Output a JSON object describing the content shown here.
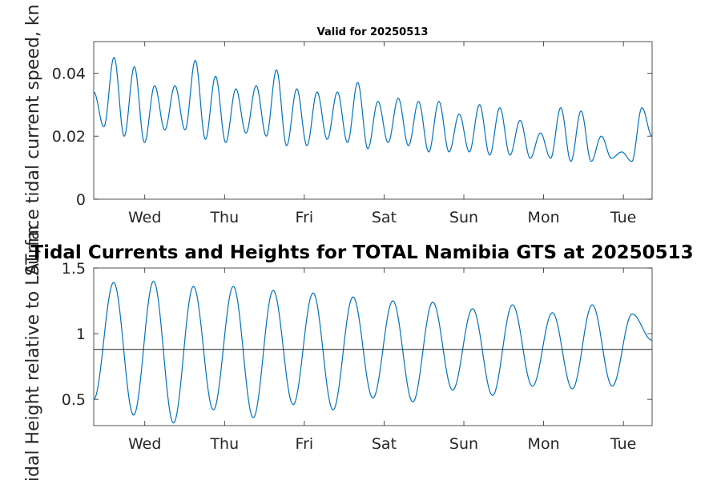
{
  "chart_data": [
    {
      "type": "line",
      "title": "Valid for 20250513",
      "ylabel": "Surface tidal current speed, kn",
      "xlabel": "",
      "x_tick_labels": [
        "Wed",
        "Thu",
        "Fri",
        "Sat",
        "Sun",
        "Mon",
        "Tue"
      ],
      "x_range_days": [
        0,
        7
      ],
      "y_ticks": [
        "0",
        "0.02",
        "0.04"
      ],
      "ylim": [
        0,
        0.05
      ],
      "color": "#0072BD",
      "series": [
        {
          "values": [
            0.034,
            0.023,
            0.045,
            0.02,
            0.042,
            0.018,
            0.036,
            0.022,
            0.036,
            0.022,
            0.044,
            0.019,
            0.039,
            0.018,
            0.035,
            0.021,
            0.036,
            0.02,
            0.041,
            0.017,
            0.035,
            0.017,
            0.034,
            0.019,
            0.034,
            0.018,
            0.037,
            0.016,
            0.031,
            0.018,
            0.032,
            0.017,
            0.031,
            0.015,
            0.031,
            0.015,
            0.027,
            0.015,
            0.03,
            0.014,
            0.029,
            0.014,
            0.025,
            0.013,
            0.021,
            0.013,
            0.029,
            0.012,
            0.028,
            0.012,
            0.02,
            0.013,
            0.015,
            0.012,
            0.029,
            0.02
          ]
        }
      ]
    },
    {
      "type": "line",
      "title": "Tidal Currents and Heights for TOTAL Namibia GTS at 20250513",
      "ylabel": "Tidal Height relative to LAT, m",
      "xlabel": "",
      "x_tick_labels": [
        "Wed",
        "Thu",
        "Fri",
        "Sat",
        "Sun",
        "Mon",
        "Tue"
      ],
      "x_range_days": [
        0,
        7
      ],
      "y_ticks": [
        "0.5",
        "1",
        "1.5"
      ],
      "ylim": [
        0.3,
        1.5
      ],
      "color": "#0072BD",
      "reference_line": 0.88,
      "series": [
        {
          "values": [
            0.5,
            1.39,
            0.38,
            1.4,
            0.32,
            1.36,
            0.42,
            1.36,
            0.36,
            1.33,
            0.46,
            1.31,
            0.42,
            1.28,
            0.51,
            1.25,
            0.48,
            1.24,
            0.57,
            1.19,
            0.53,
            1.22,
            0.6,
            1.16,
            0.58,
            1.22,
            0.6,
            1.15,
            0.95
          ]
        }
      ]
    }
  ]
}
